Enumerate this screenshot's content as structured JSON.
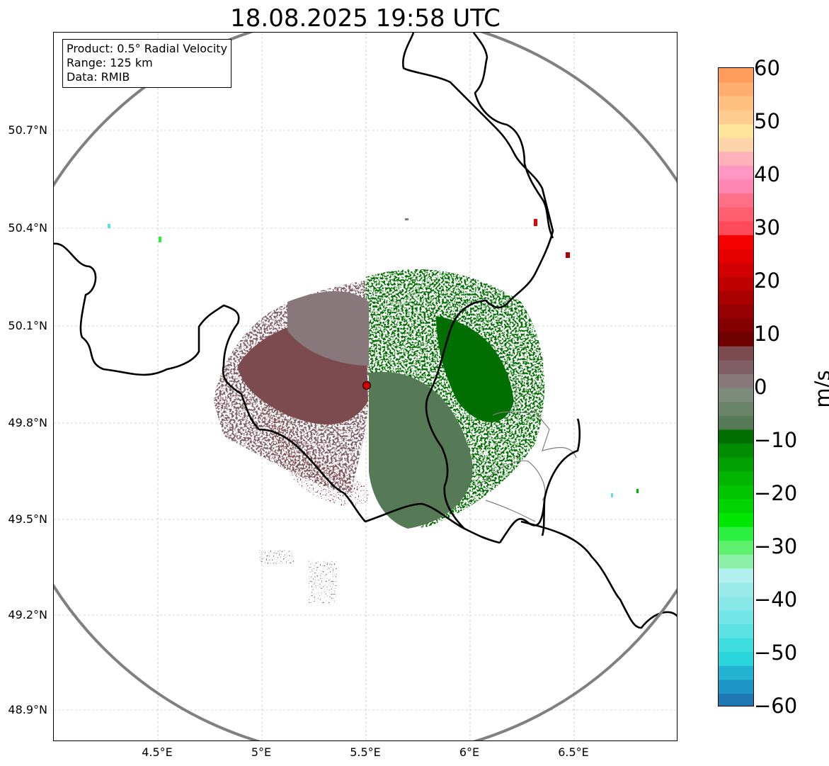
{
  "title": "18.08.2025 19:58 UTC",
  "info": {
    "product": "Product: 0.5° Radial Velocity",
    "range": "Range: 125 km",
    "data": "Data: RMIB"
  },
  "map": {
    "lon_range": [
      4.0,
      7.0
    ],
    "lat_range": [
      48.8,
      50.98
    ],
    "radar_site": {
      "lon": 5.505,
      "lat": 49.914
    },
    "range_ring_color": "#808080",
    "border_color": "#000000",
    "subborder_color": "#808080",
    "radar_marker_color": "#d00000"
  },
  "axes": {
    "y_ticks": [
      "50.7°N",
      "50.4°N",
      "50.1°N",
      "49.8°N",
      "49.5°N",
      "49.2°N",
      "48.9°N"
    ],
    "x_ticks": [
      "4.5°E",
      "5°E",
      "5.5°E",
      "6°E",
      "6.5°E"
    ]
  },
  "colorbar": {
    "label": "m/s",
    "ticks": [
      "60",
      "50",
      "40",
      "30",
      "20",
      "10",
      "0",
      "−10",
      "−20",
      "−30",
      "−40",
      "−50",
      "−60"
    ],
    "range": [
      -60,
      60
    ],
    "colors_bottom_to_top": [
      "#1f77b4",
      "#1f96c8",
      "#22b2d2",
      "#2ad6dc",
      "#3ddddd",
      "#5ae2e2",
      "#72e6e6",
      "#88e8e8",
      "#9cebeb",
      "#b2efef",
      "#8cf0a8",
      "#60f070",
      "#2cf040",
      "#00e600",
      "#00d400",
      "#00c400",
      "#00b400",
      "#00a000",
      "#008c00",
      "#006e00",
      "#557a55",
      "#6a846a",
      "#7d8c7c",
      "#88777b",
      "#7f5e65",
      "#7c4b4f",
      "#6e0000",
      "#820000",
      "#960000",
      "#aa0000",
      "#be0000",
      "#d20000",
      "#e60000",
      "#f50000",
      "#ff4a5a",
      "#ff5f6e",
      "#ff7088",
      "#ff86b2",
      "#ff96c4",
      "#ffb0b8",
      "#ffd4a8",
      "#ffe49c",
      "#ffcc90",
      "#ffc080",
      "#ffae70",
      "#ff9c5c"
    ]
  }
}
